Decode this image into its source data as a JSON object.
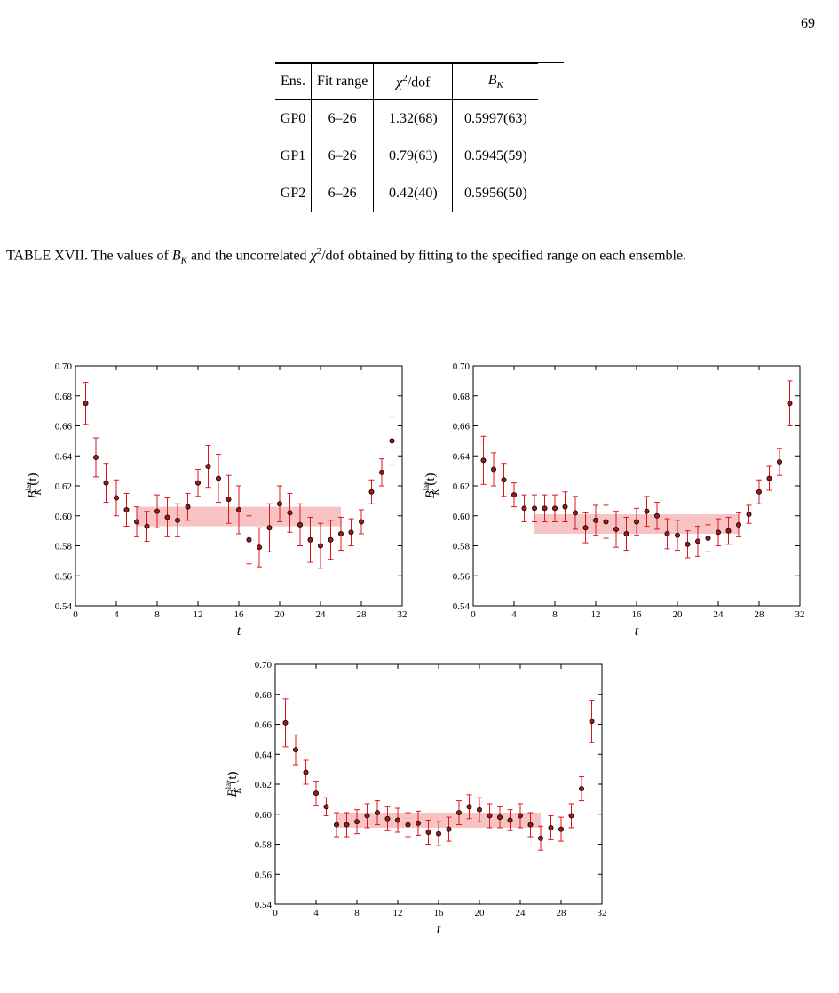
{
  "page_number": "69",
  "table": {
    "headers": [
      "Ens.",
      "Fit range",
      "χ²/dof",
      "B_K"
    ],
    "rows": [
      [
        "GP0",
        "6–26",
        "1.32(68)",
        "0.5997(63)"
      ],
      [
        "GP1",
        "6–26",
        "0.79(63)",
        "0.5945(59)"
      ],
      [
        "GP2",
        "6–26",
        "0.42(40)",
        "0.5956(50)"
      ]
    ]
  },
  "caption": {
    "p1": "TABLE XVII. The values of ",
    "bk": "B",
    "bk_sub": "K",
    "p2": " and the uncorrelated ",
    "chi": "χ",
    "chi_sup": "2",
    "p3": "/dof obtained by fitting to the specified range on each ensemble."
  },
  "colors": {
    "points": "#e0141e",
    "band": "#f7bcbc",
    "marker_fill": "#a01818"
  },
  "chart_data": [
    {
      "type": "scatter",
      "xlabel": "t",
      "ylabel": "B_K^lat(t)",
      "xlim": [
        0,
        32
      ],
      "ylim": [
        0.54,
        0.7
      ],
      "xticks": [
        0,
        4,
        8,
        12,
        16,
        20,
        24,
        28,
        32
      ],
      "yticks": [
        0.54,
        0.56,
        0.58,
        0.6,
        0.62,
        0.64,
        0.66,
        0.68,
        0.7
      ],
      "band": {
        "x_range": [
          6,
          26
        ],
        "y_range": [
          0.593,
          0.606
        ]
      },
      "x": [
        1,
        2,
        3,
        4,
        5,
        6,
        7,
        8,
        9,
        10,
        11,
        12,
        13,
        14,
        15,
        16,
        17,
        18,
        19,
        20,
        21,
        22,
        23,
        24,
        25,
        26,
        27,
        28,
        29,
        30,
        31
      ],
      "y": [
        0.675,
        0.639,
        0.622,
        0.612,
        0.604,
        0.596,
        0.593,
        0.603,
        0.599,
        0.597,
        0.606,
        0.622,
        0.633,
        0.625,
        0.611,
        0.604,
        0.584,
        0.579,
        0.592,
        0.608,
        0.602,
        0.594,
        0.584,
        0.58,
        0.584,
        0.588,
        0.589,
        0.596,
        0.616,
        0.629,
        0.65
      ],
      "err": [
        0.014,
        0.013,
        0.013,
        0.012,
        0.011,
        0.01,
        0.01,
        0.011,
        0.013,
        0.011,
        0.009,
        0.009,
        0.014,
        0.016,
        0.016,
        0.016,
        0.016,
        0.013,
        0.016,
        0.012,
        0.013,
        0.014,
        0.015,
        0.015,
        0.013,
        0.011,
        0.009,
        0.008,
        0.008,
        0.009,
        0.016
      ]
    },
    {
      "type": "scatter",
      "xlabel": "t",
      "ylabel": "B_K^lat(t)",
      "xlim": [
        0,
        32
      ],
      "ylim": [
        0.54,
        0.7
      ],
      "xticks": [
        0,
        4,
        8,
        12,
        16,
        20,
        24,
        28,
        32
      ],
      "yticks": [
        0.54,
        0.56,
        0.58,
        0.6,
        0.62,
        0.64,
        0.66,
        0.68,
        0.7
      ],
      "band": {
        "x_range": [
          6,
          26
        ],
        "y_range": [
          0.588,
          0.601
        ]
      },
      "x": [
        1,
        2,
        3,
        4,
        5,
        6,
        7,
        8,
        9,
        10,
        11,
        12,
        13,
        14,
        15,
        16,
        17,
        18,
        19,
        20,
        21,
        22,
        23,
        24,
        25,
        26,
        27,
        28,
        29,
        30,
        31
      ],
      "y": [
        0.637,
        0.631,
        0.624,
        0.614,
        0.605,
        0.605,
        0.605,
        0.605,
        0.606,
        0.602,
        0.592,
        0.597,
        0.596,
        0.591,
        0.588,
        0.596,
        0.603,
        0.6,
        0.588,
        0.587,
        0.581,
        0.583,
        0.585,
        0.589,
        0.59,
        0.594,
        0.601,
        0.616,
        0.625,
        0.636,
        0.675
      ],
      "err": [
        0.016,
        0.011,
        0.011,
        0.008,
        0.009,
        0.009,
        0.009,
        0.009,
        0.01,
        0.011,
        0.01,
        0.01,
        0.011,
        0.012,
        0.011,
        0.009,
        0.01,
        0.009,
        0.01,
        0.01,
        0.009,
        0.01,
        0.009,
        0.009,
        0.009,
        0.008,
        0.006,
        0.008,
        0.008,
        0.009,
        0.015
      ]
    },
    {
      "type": "scatter",
      "xlabel": "t",
      "ylabel": "B_K^lat(t)",
      "xlim": [
        0,
        32
      ],
      "ylim": [
        0.54,
        0.7
      ],
      "xticks": [
        0,
        4,
        8,
        12,
        16,
        20,
        24,
        28,
        32
      ],
      "yticks": [
        0.54,
        0.56,
        0.58,
        0.6,
        0.62,
        0.64,
        0.66,
        0.68,
        0.7
      ],
      "band": {
        "x_range": [
          6,
          26
        ],
        "y_range": [
          0.591,
          0.601
        ]
      },
      "x": [
        1,
        2,
        3,
        4,
        5,
        6,
        7,
        8,
        9,
        10,
        11,
        12,
        13,
        14,
        15,
        16,
        17,
        18,
        19,
        20,
        21,
        22,
        23,
        24,
        25,
        26,
        27,
        28,
        29,
        30,
        31
      ],
      "y": [
        0.661,
        0.643,
        0.628,
        0.614,
        0.605,
        0.593,
        0.593,
        0.595,
        0.599,
        0.601,
        0.597,
        0.596,
        0.593,
        0.594,
        0.588,
        0.587,
        0.59,
        0.601,
        0.605,
        0.603,
        0.599,
        0.598,
        0.596,
        0.599,
        0.593,
        0.584,
        0.591,
        0.59,
        0.599,
        0.617,
        0.662
      ],
      "err": [
        0.016,
        0.01,
        0.008,
        0.008,
        0.006,
        0.008,
        0.008,
        0.008,
        0.008,
        0.008,
        0.008,
        0.008,
        0.008,
        0.008,
        0.008,
        0.008,
        0.008,
        0.008,
        0.008,
        0.008,
        0.008,
        0.007,
        0.007,
        0.008,
        0.008,
        0.008,
        0.008,
        0.008,
        0.008,
        0.008,
        0.014
      ]
    }
  ]
}
